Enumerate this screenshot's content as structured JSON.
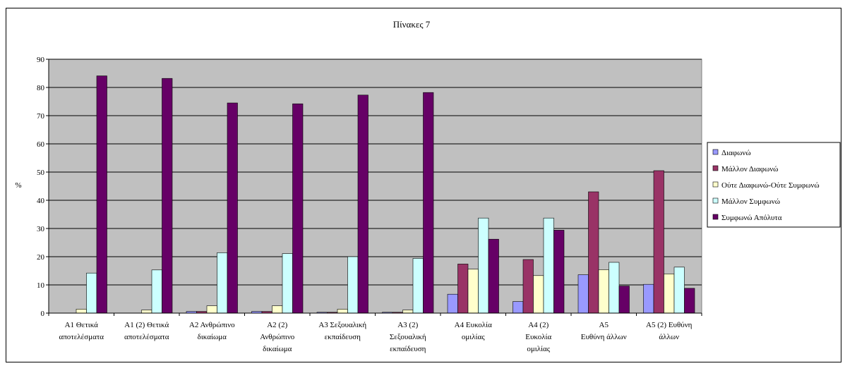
{
  "chart_data": {
    "type": "bar",
    "title": "Πίνακες 7",
    "xlabel": "",
    "ylabel": "%",
    "ylim": [
      0,
      90
    ],
    "yticks": [
      0,
      10,
      20,
      30,
      40,
      50,
      60,
      70,
      80,
      90
    ],
    "grid": true,
    "plot_background": "#C0C0C0",
    "legend_position": "right",
    "categories": [
      "Α1 Θετικά αποτελέσματα",
      "Α1 (2) Θετικά αποτελέσματα",
      "Α2 Ανθρώπινο δικαίωμα",
      "Α2 (2) Ανθρώπινο δικαίωμα",
      "Α3 Σεξουαλική εκπαίδευση",
      "Α3 (2) Σεξουαλική εκπαίδευση",
      "Α4 Ευκολία ομιλίας",
      "Α4 (2) Ευκολία ομιλίας",
      "Α5 Ευθύνη άλλων",
      "Α5 (2) Ευθύνη άλλων"
    ],
    "category_lines": [
      [
        "Α1 Θετικά",
        "αποτελέσματα"
      ],
      [
        "Α1 (2) Θετικά",
        "αποτελέσματα"
      ],
      [
        "Α2 Ανθρώπινο",
        "δικαίωμα"
      ],
      [
        "Α2 (2)",
        "Ανθρώπινο",
        "δικαίωμα"
      ],
      [
        "Α3 Σεξουαλική",
        "εκπαίδευση"
      ],
      [
        "Α3 (2)",
        "Σεξουαλική",
        "εκπαίδευση"
      ],
      [
        "Α4 Ευκολία",
        "ομιλίας"
      ],
      [
        "Α4 (2)",
        "Ευκολία",
        "ομιλίας"
      ],
      [
        "Α5",
        "Ευθύνη άλλων"
      ],
      [
        "Α5 (2) Ευθύνη",
        "άλλων"
      ]
    ],
    "series": [
      {
        "name": "Διαφωνώ",
        "color": "#9999FF",
        "values": [
          0,
          0,
          0.6,
          0.6,
          0.3,
          0.3,
          6.7,
          4.1,
          13.6,
          10.2
        ]
      },
      {
        "name": "Μάλλον Διαφωνώ",
        "color": "#993366",
        "values": [
          0,
          0,
          0.6,
          0.6,
          0.3,
          0.3,
          17.4,
          19.0,
          43.0,
          50.5
        ]
      },
      {
        "name": "Ούτε Διαφωνώ-Ούτε Συμφωνώ",
        "color": "#FFFFCC",
        "values": [
          1.4,
          1.1,
          2.6,
          2.6,
          1.4,
          1.1,
          15.6,
          13.3,
          15.4,
          13.9
        ]
      },
      {
        "name": "Μάλλον Συμφωνώ",
        "color": "#CCFFFF",
        "values": [
          14.2,
          15.3,
          21.4,
          21.1,
          20.0,
          19.4,
          33.7,
          33.7,
          18.0,
          16.3
        ]
      },
      {
        "name": "Συμφωνώ Απόλυτα",
        "color": "#660066",
        "values": [
          84.1,
          83.2,
          74.5,
          74.2,
          77.3,
          78.2,
          26.2,
          29.4,
          9.6,
          8.8
        ]
      }
    ]
  }
}
